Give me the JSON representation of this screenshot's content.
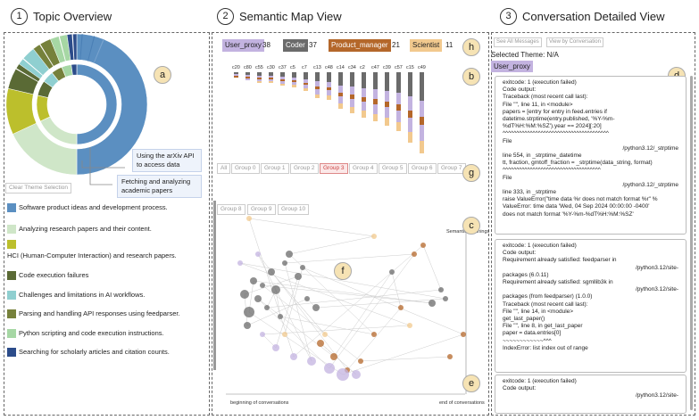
{
  "panels": {
    "p1": {
      "num": "1",
      "title": "Topic Overview"
    },
    "p2": {
      "num": "2",
      "title": "Semantic Map View"
    },
    "p3": {
      "num": "3",
      "title": "Conversation Detailed View"
    }
  },
  "badges": {
    "a": "a",
    "b": "b",
    "b2": "b",
    "c": "c",
    "d": "d",
    "e": "e",
    "f": "f",
    "g": "g",
    "h": "h"
  },
  "topic": {
    "callout1": "Using the arXiv API to access data",
    "callout2": "Fetching and analyzing academic papers",
    "clear_button": "Clear Theme Selection",
    "legend": [
      {
        "label": "Software product ideas and development process.",
        "color": "#5b8fc1"
      },
      {
        "label": "Analyzing research papers and their content.",
        "color": "#cfe6c8"
      },
      {
        "label": "HCI (Human-Computer Interaction) and research papers.",
        "color": "#bcbf2c"
      },
      {
        "label": "Code execution failures",
        "color": "#5a6a35"
      },
      {
        "label": "Challenges and limitations in AI workflows.",
        "color": "#8fcfd0"
      },
      {
        "label": "Parsing and handling API responses using feedparser.",
        "color": "#76813b"
      },
      {
        "label": "Python scripting and code execution instructions.",
        "color": "#a6d7a4"
      },
      {
        "label": "Searching for scholarly articles and citation counts.",
        "color": "#2c4c8a"
      }
    ]
  },
  "roles": [
    {
      "name": "User_proxy",
      "count": "38",
      "color": "#c3b3e0"
    },
    {
      "name": "Coder",
      "count": "37",
      "color": "#6b6b6b"
    },
    {
      "name": "Product_manager",
      "count": "21",
      "color": "#b4672a"
    },
    {
      "name": "Scientist",
      "count": "11",
      "color": "#f2c98e"
    }
  ],
  "columns": [
    "c20",
    "c80",
    "c55",
    "c30",
    "c37",
    "c5",
    "c7",
    "c13",
    "c48",
    "c14",
    "c34",
    "c2",
    "c47",
    "c39",
    "c57",
    "c15",
    "c49"
  ],
  "groups": [
    "All",
    "Group 0",
    "Group 1",
    "Group 2",
    "Group 3",
    "Group 4",
    "Group 5",
    "Group 6",
    "Group 7",
    "Group 8",
    "Group 9",
    "Group 10"
  ],
  "active_group": "Group 3",
  "map": {
    "y_label": "Semantic meanings",
    "x_start": "beginning of conversations",
    "x_end": "end of conversations"
  },
  "detail": {
    "btn_all": "See All Messages",
    "btn_conv": "View by Conversation",
    "selected_theme": "Selected Theme: N/A",
    "theme_tag": "User_proxy",
    "cards": [
      [
        {
          "t": "exitcode: 1 (execution failed)"
        },
        {
          "t": "Code output:"
        },
        {
          "t": "Traceback (most recent call last):"
        },
        {
          "t": "File \"\", line 11, in <module>"
        },
        {
          "t": "papers = [entry for entry in feed.entries if"
        },
        {
          "t": "datetime.strptime(entry.published, '%Y-%m-"
        },
        {
          "t": "%dT%H:%M:%SZ').year == 2024][:20]"
        },
        {
          "t": "^^^^^^^^^^^^^^^^^^^^^^^^^^^^^^^^^^^^^^^"
        },
        {
          "t": "File"
        },
        {
          "t": "/python3.12/_strptime",
          "r": true
        },
        {
          "t": ""
        },
        {
          "t": "line 554, in _strptime_datetime"
        },
        {
          "t": "tt, fraction, gmtoff_fraction = _strptime(data_string, format)"
        },
        {
          "t": "^^^^^^^^^^^^^^^^^^^^^^^^^^^^^^^^^^^^"
        },
        {
          "t": "File"
        },
        {
          "t": "/python3.12/_strptime",
          "r": true
        },
        {
          "t": ""
        },
        {
          "t": "line 333, in _strptime"
        },
        {
          "t": "raise ValueError(\"time data %r does not match format %r\" %"
        },
        {
          "t": "ValueError: time data 'Wed, 04 Sep 2024 00:00:00 -0400'"
        },
        {
          "t": "does not match format '%Y-%m-%dT%H:%M:%SZ'"
        }
      ],
      [
        {
          "t": "exitcode: 1 (execution failed)"
        },
        {
          "t": "Code output:"
        },
        {
          "t": "Requirement already satisfied: feedparser in"
        },
        {
          "t": "/python3.12/site-",
          "r": true
        },
        {
          "t": "packages (6.0.11)"
        },
        {
          "t": "Requirement already satisfied: sgmllib3k in"
        },
        {
          "t": "/python3.12/site-",
          "r": true
        },
        {
          "t": "packages (from feedparser) (1.0.0)"
        },
        {
          "t": ""
        },
        {
          "t": "Traceback (most recent call last):"
        },
        {
          "t": "File \"\", line 14, in <module>"
        },
        {
          "t": "get_last_paper()"
        },
        {
          "t": "File \"\", line 8, in get_last_paper"
        },
        {
          "t": "paper = data.entries[0]"
        },
        {
          "t": "~~~~~~~~~~~~^^^"
        },
        {
          "t": "IndexError: list index out of range"
        }
      ],
      [
        {
          "t": "exitcode: 1 (execution failed)"
        },
        {
          "t": "Code output:"
        },
        {
          "t": "/python3.12/site-",
          "r": true
        }
      ]
    ]
  }
}
